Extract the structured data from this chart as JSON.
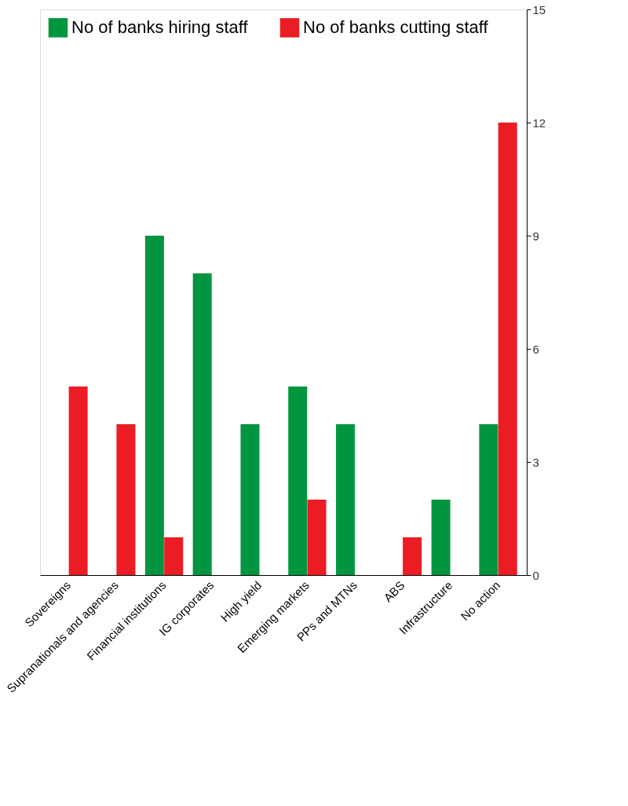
{
  "chart_data": {
    "type": "bar",
    "categories": [
      "Sovereigns",
      "Supranationals and agencies",
      "Financial institutions",
      "IG corporates",
      "High yield",
      "Emerging markets",
      "PPs and MTNs",
      "ABS",
      "Infrastructure",
      "No action"
    ],
    "series": [
      {
        "name": "No of banks hiring staff",
        "color": "#00963f",
        "values": [
          0,
          0,
          9,
          8,
          4,
          5,
          4,
          0,
          2,
          4
        ]
      },
      {
        "name": "No of banks cutting staff",
        "color": "#ec1c24",
        "values": [
          5,
          4,
          1,
          0,
          0,
          2,
          0,
          1,
          0,
          12
        ]
      }
    ],
    "ylim": [
      0,
      15
    ],
    "yticks": [
      0,
      3,
      6,
      9,
      12,
      15
    ],
    "grid": false,
    "legend": "top left"
  }
}
